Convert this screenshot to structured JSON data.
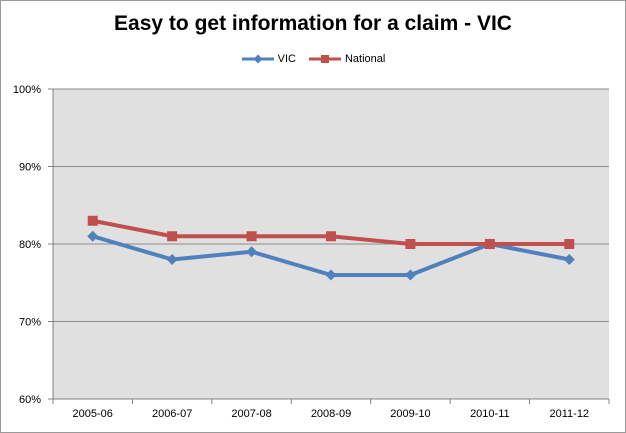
{
  "chart_data": {
    "type": "line",
    "title": "Easy to get information for a claim - VIC",
    "categories": [
      "2005-06",
      "2006-07",
      "2007-08",
      "2008-09",
      "2009-10",
      "2010-11",
      "2011-12"
    ],
    "series": [
      {
        "name": "VIC",
        "values": [
          81,
          78,
          79,
          76,
          76,
          80,
          78
        ],
        "color": "#4F81BD",
        "marker": "diamond"
      },
      {
        "name": "National",
        "values": [
          83,
          81,
          81,
          81,
          80,
          80,
          80
        ],
        "color": "#C0504D",
        "marker": "square"
      }
    ],
    "ylim": [
      60,
      100
    ],
    "yticks": [
      "60%",
      "70%",
      "80%",
      "90%",
      "100%"
    ],
    "ytick_values": [
      60,
      70,
      80,
      90,
      100
    ],
    "grid": true,
    "legend": "top",
    "plot_background": "#e0e0e0",
    "xlabel": "",
    "ylabel": ""
  }
}
